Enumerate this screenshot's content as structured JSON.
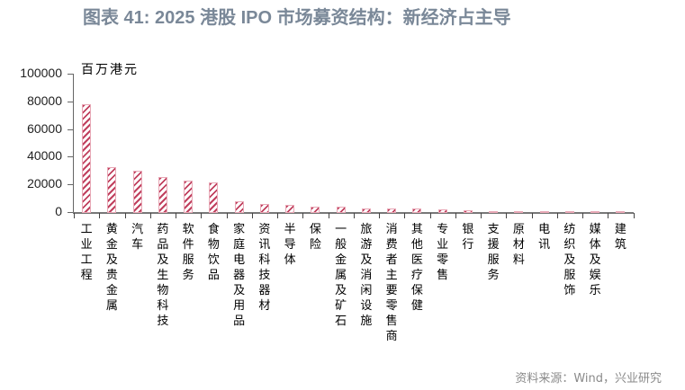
{
  "title": "图表 41: 2025 港股 IPO 市场募资结构：新经济占主导",
  "source": "资料来源：Wind，兴业研究",
  "chart_data": {
    "type": "bar",
    "title": "图表 41: 2025 港股 IPO 市场募资结构：新经济占主导",
    "xlabel": "",
    "ylabel": "百万港元",
    "ylim": [
      0,
      100000
    ],
    "yticks": [
      0,
      20000,
      40000,
      60000,
      80000,
      100000
    ],
    "grid": false,
    "legend": null,
    "bar_style": {
      "fill": "#C0405E",
      "pattern": "diagonal-hatch",
      "border": "#E8A8B6"
    },
    "categories": [
      "工业工程",
      "黄金及贵金属",
      "汽车",
      "药品及生物科技",
      "软件服务",
      "食物饮品",
      "家庭电器及用品",
      "资讯科技器材",
      "半导体",
      "保险",
      "一般金属及矿石",
      "旅游及消闲设施",
      "消费者主要零售商",
      "其他医疗保健",
      "专业零售",
      "银行",
      "支援服务",
      "原材料",
      "电讯",
      "纺织及服饰",
      "媒体及娱乐",
      "建筑"
    ],
    "values": [
      78000,
      32500,
      29900,
      25100,
      22700,
      21400,
      7600,
      5600,
      5000,
      4000,
      3800,
      2500,
      2500,
      2300,
      1700,
      1500,
      700,
      500,
      400,
      350,
      300,
      250
    ]
  }
}
